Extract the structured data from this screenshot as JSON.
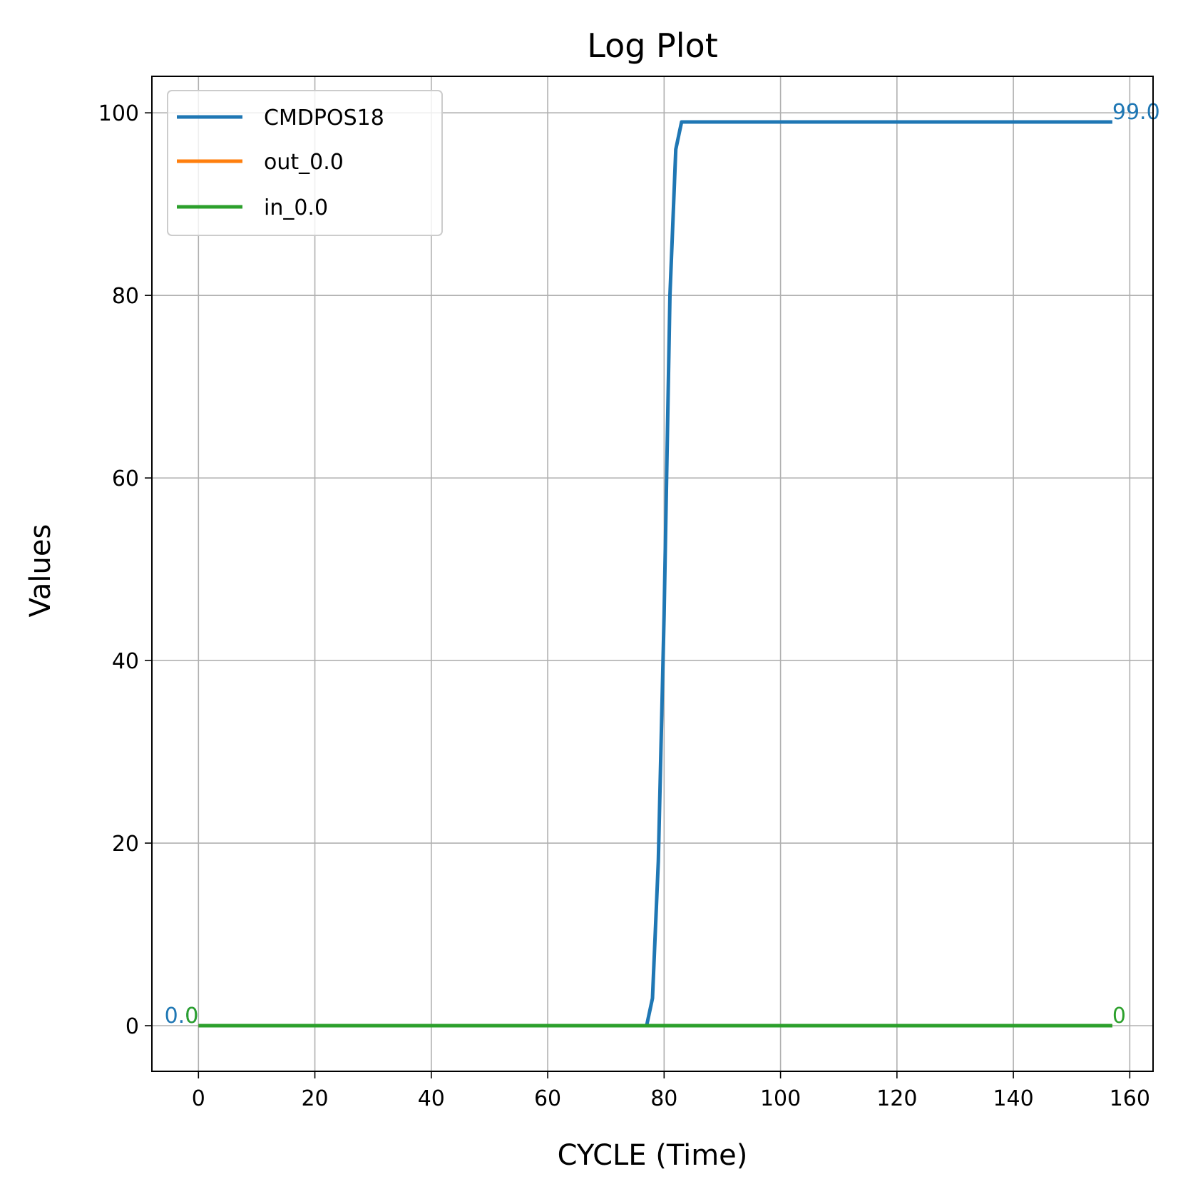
{
  "chart_data": {
    "type": "line",
    "title": "Log Plot",
    "xlabel": "CYCLE (Time)",
    "ylabel": "Values",
    "xlim": [
      -8,
      164
    ],
    "ylim": [
      -5,
      104
    ],
    "xticks": [
      0,
      20,
      40,
      60,
      80,
      100,
      120,
      140,
      160
    ],
    "yticks": [
      0,
      20,
      40,
      60,
      80,
      100
    ],
    "grid": true,
    "legend_position": "top-left",
    "series": [
      {
        "name": "CMDPOS18",
        "color": "#1f77b4",
        "x": [
          0,
          77,
          78,
          79,
          80,
          81,
          82,
          83,
          157
        ],
        "y": [
          0,
          0,
          3,
          18,
          45,
          80,
          96,
          99,
          99
        ],
        "start_label": "0.0",
        "end_label": "99.0"
      },
      {
        "name": "out_0.0",
        "color": "#ff7f0e",
        "x": [
          0,
          157
        ],
        "y": [
          0,
          0
        ],
        "start_label": "",
        "end_label": ""
      },
      {
        "name": "in_0.0",
        "color": "#2ca02c",
        "x": [
          0,
          157
        ],
        "y": [
          0,
          0
        ],
        "start_label": "0",
        "end_label": "0"
      }
    ]
  }
}
